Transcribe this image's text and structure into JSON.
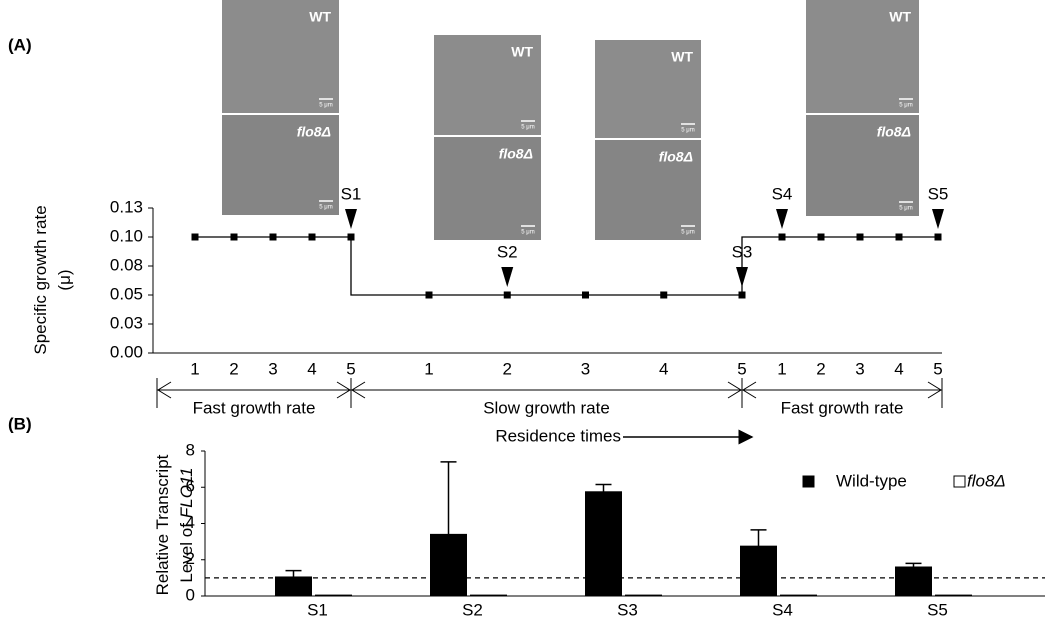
{
  "chart_data": [
    {
      "type": "line",
      "panel": "(A)",
      "ylabel": [
        "Specific growth rate",
        "(μ)"
      ],
      "ylim": [
        0,
        0.125
      ],
      "yticks": [
        {
          "value": 0,
          "label": "0.00"
        },
        {
          "value": 0.025,
          "label": "0.03"
        },
        {
          "value": 0.05,
          "label": "0.05"
        },
        {
          "value": 0.075,
          "label": "0.08"
        },
        {
          "value": 0.1,
          "label": "0.10"
        },
        {
          "value": 0.125,
          "label": "0.13"
        }
      ],
      "color": "#000000",
      "segments": [
        {
          "label": "Fast growth rate",
          "categories": [
            "1",
            "2",
            "3",
            "4",
            "5"
          ],
          "values": [
            0.1,
            0.1,
            0.1,
            0.1,
            0.1
          ],
          "sample_labels": [
            null,
            null,
            null,
            null,
            "S1"
          ]
        },
        {
          "label": "Slow growth rate",
          "categories": [
            "1",
            "2",
            "3",
            "4",
            "5"
          ],
          "values": [
            0.05,
            0.05,
            0.05,
            0.05,
            0.05
          ],
          "sample_labels": [
            null,
            "S2",
            null,
            null,
            "S3"
          ]
        },
        {
          "label": "Fast growth rate",
          "categories": [
            "1",
            "2",
            "3",
            "4",
            "5"
          ],
          "values": [
            0.1,
            0.1,
            0.1,
            0.1,
            0.1
          ],
          "sample_labels": [
            "S4",
            null,
            null,
            null,
            "S5"
          ]
        }
      ],
      "x_annotation": "Residence times",
      "images": [
        {
          "top": "WT",
          "bottom": "flo8Δ",
          "scale": "5 μm"
        },
        {
          "top": "WT",
          "bottom": "flo8Δ",
          "scale": "5 μm"
        },
        {
          "top": "WT",
          "bottom": "flo8Δ",
          "scale": "5 μm"
        },
        {
          "top": "WT",
          "bottom": "flo8Δ",
          "scale": "5 μm"
        }
      ]
    },
    {
      "type": "bar",
      "panel": "(B)",
      "ylabel": [
        "Relative Transcript",
        "Level of",
        "FLO11"
      ],
      "categories": [
        "S1",
        "S2",
        "S3",
        "S4",
        "S5"
      ],
      "ylim": [
        0,
        8
      ],
      "yticks": [
        0,
        2,
        4,
        6,
        8
      ],
      "series": [
        {
          "name": "Wild-type",
          "color": "#000000",
          "values": [
            1.05,
            3.4,
            5.75,
            2.75,
            1.6
          ],
          "errors": [
            0.35,
            4.0,
            0.4,
            0.9,
            0.2
          ]
        },
        {
          "name": "flo8Δ",
          "color": "#ffffff",
          "values": [
            0.05,
            0.05,
            0.05,
            0.05,
            0.05
          ]
        }
      ],
      "reference_line": 1,
      "legend": "upper right"
    }
  ]
}
